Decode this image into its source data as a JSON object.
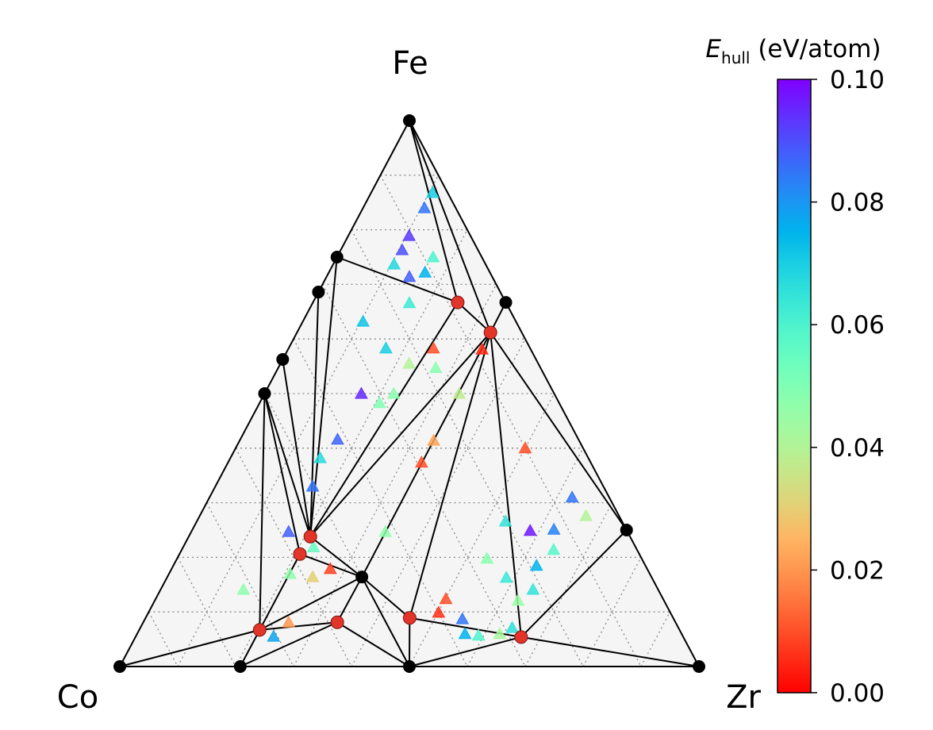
{
  "chart_data": {
    "type": "scatter",
    "subtype": "ternary-phase-diagram",
    "vertices": {
      "top": "Fe",
      "left": "Co",
      "right": "Zr"
    },
    "composition_axes": [
      "Fe",
      "Zr"
    ],
    "grid": true,
    "grid_step": 0.1,
    "colorbar": {
      "label_main": "E",
      "label_sub": "hull",
      "label_unit": " (eV/atom)",
      "range": [
        0.0,
        0.1
      ],
      "ticks": [
        "0.00",
        "0.02",
        "0.04",
        "0.06",
        "0.08",
        "0.10"
      ],
      "tick_values": [
        0,
        0.02,
        0.04,
        0.06,
        0.08,
        0.1
      ],
      "colormap": "rainbow_r",
      "position": "right"
    },
    "hull_nodes": [
      {
        "id": "Fe",
        "Fe": 1.0,
        "Zr": 0.0,
        "stable_type": "elemental"
      },
      {
        "id": "B",
        "Fe": 0.75,
        "Zr": 0.0,
        "stable_type": "binary"
      },
      {
        "id": "C",
        "Fe": 0.686,
        "Zr": 0.0,
        "stable_type": "binary"
      },
      {
        "id": "D",
        "Fe": 0.5625,
        "Zr": 0.0,
        "stable_type": "binary"
      },
      {
        "id": "E",
        "Fe": 0.5,
        "Zr": 0.0,
        "stable_type": "binary"
      },
      {
        "id": "F",
        "Fe": 0.667,
        "Zr": 0.333,
        "stable_type": "binary"
      },
      {
        "id": "G",
        "Fe": 0.25,
        "Zr": 0.75,
        "stable_type": "binary"
      },
      {
        "id": "Zr",
        "Fe": 0.0,
        "Zr": 1.0,
        "stable_type": "elemental"
      },
      {
        "id": "I",
        "Fe": 0.0,
        "Zr": 0.5,
        "stable_type": "binary"
      },
      {
        "id": "J",
        "Fe": 0.0,
        "Zr": 0.208,
        "stable_type": "binary"
      },
      {
        "id": "Co",
        "Fe": 0.0,
        "Zr": 0.0,
        "stable_type": "elemental"
      },
      {
        "id": "L",
        "Fe": 0.164,
        "Zr": 0.336,
        "stable_type": "binary"
      },
      {
        "id": "R1",
        "Fe": 0.667,
        "Zr": 0.25,
        "stable_type": "ternary"
      },
      {
        "id": "R2",
        "Fe": 0.612,
        "Zr": 0.334,
        "stable_type": "ternary"
      },
      {
        "id": "R3",
        "Fe": 0.238,
        "Zr": 0.21,
        "stable_type": "ternary"
      },
      {
        "id": "R4",
        "Fe": 0.206,
        "Zr": 0.208,
        "stable_type": "ternary"
      },
      {
        "id": "R5",
        "Fe": 0.067,
        "Zr": 0.208,
        "stable_type": "ternary"
      },
      {
        "id": "R6",
        "Fe": 0.081,
        "Zr": 0.335,
        "stable_type": "ternary"
      },
      {
        "id": "R7",
        "Fe": 0.089,
        "Zr": 0.456,
        "stable_type": "ternary"
      },
      {
        "id": "R8",
        "Fe": 0.054,
        "Zr": 0.666,
        "stable_type": "ternary"
      }
    ],
    "tie_lines": [
      [
        "Fe",
        "Co"
      ],
      [
        "Co",
        "Zr"
      ],
      [
        "Fe",
        "Zr"
      ],
      [
        "Fe",
        "R1"
      ],
      [
        "Fe",
        "R2"
      ],
      [
        "B",
        "R1"
      ],
      [
        "B",
        "R3"
      ],
      [
        "C",
        "R3"
      ],
      [
        "D",
        "R3"
      ],
      [
        "E",
        "R3"
      ],
      [
        "E",
        "R4"
      ],
      [
        "E",
        "R5"
      ],
      [
        "R1",
        "R2"
      ],
      [
        "R1",
        "R3"
      ],
      [
        "R2",
        "F"
      ],
      [
        "R2",
        "R3"
      ],
      [
        "R2",
        "L"
      ],
      [
        "R2",
        "R7"
      ],
      [
        "R2",
        "R8"
      ],
      [
        "R2",
        "G"
      ],
      [
        "R3",
        "L"
      ],
      [
        "R4",
        "L"
      ],
      [
        "R4",
        "R5"
      ],
      [
        "R5",
        "L"
      ],
      [
        "R5",
        "R6"
      ],
      [
        "R5",
        "J"
      ],
      [
        "R5",
        "Co"
      ],
      [
        "J",
        "R6"
      ],
      [
        "L",
        "R6"
      ],
      [
        "L",
        "R7"
      ],
      [
        "L",
        "I"
      ],
      [
        "R6",
        "I"
      ],
      [
        "R7",
        "I"
      ],
      [
        "R7",
        "R8"
      ],
      [
        "I",
        "R8"
      ],
      [
        "R8",
        "Zr"
      ],
      [
        "R8",
        "G"
      ]
    ],
    "unstable_points": [
      {
        "Fe": 0.868,
        "Zr": 0.106,
        "Ehull": 0.07
      },
      {
        "Fe": 0.84,
        "Zr": 0.106,
        "Ehull": 0.085
      },
      {
        "Fe": 0.789,
        "Zr": 0.105,
        "Ehull": 0.093
      },
      {
        "Fe": 0.763,
        "Zr": 0.106,
        "Ehull": 0.09
      },
      {
        "Fe": 0.75,
        "Zr": 0.166,
        "Ehull": 0.06
      },
      {
        "Fe": 0.737,
        "Zr": 0.105,
        "Ehull": 0.068
      },
      {
        "Fe": 0.722,
        "Zr": 0.166,
        "Ehull": 0.075
      },
      {
        "Fe": 0.714,
        "Zr": 0.143,
        "Ehull": 0.088
      },
      {
        "Fe": 0.666,
        "Zr": 0.167,
        "Ehull": 0.063
      },
      {
        "Fe": 0.632,
        "Zr": 0.104,
        "Ehull": 0.072
      },
      {
        "Fe": 0.583,
        "Zr": 0.168,
        "Ehull": 0.07
      },
      {
        "Fe": 0.583,
        "Zr": 0.25,
        "Ehull": 0.01
      },
      {
        "Fe": 0.555,
        "Zr": 0.222,
        "Ehull": 0.04
      },
      {
        "Fe": 0.547,
        "Zr": 0.272,
        "Ehull": 0.048
      },
      {
        "Fe": 0.5,
        "Zr": 0.167,
        "Ehull": 0.095
      },
      {
        "Fe": 0.5,
        "Zr": 0.223,
        "Ehull": 0.048
      },
      {
        "Fe": 0.483,
        "Zr": 0.207,
        "Ehull": 0.05
      },
      {
        "Fe": 0.5,
        "Zr": 0.336,
        "Ehull": 0.038
      },
      {
        "Fe": 0.416,
        "Zr": 0.168,
        "Ehull": 0.087
      },
      {
        "Fe": 0.382,
        "Zr": 0.155,
        "Ehull": 0.067
      },
      {
        "Fe": 0.33,
        "Zr": 0.168,
        "Ehull": 0.085
      },
      {
        "Fe": 0.414,
        "Zr": 0.335,
        "Ehull": 0.022
      },
      {
        "Fe": 0.374,
        "Zr": 0.334,
        "Ehull": 0.01
      },
      {
        "Fe": 0.581,
        "Zr": 0.335,
        "Ehull": 0.005
      },
      {
        "Fe": 0.4,
        "Zr": 0.5,
        "Ehull": 0.01
      },
      {
        "Fe": 0.247,
        "Zr": 0.168,
        "Ehull": 0.088
      },
      {
        "Fe": 0.219,
        "Zr": 0.225,
        "Ehull": 0.055
      },
      {
        "Fe": 0.247,
        "Zr": 0.335,
        "Ehull": 0.047
      },
      {
        "Fe": 0.179,
        "Zr": 0.274,
        "Ehull": 0.008
      },
      {
        "Fe": 0.164,
        "Zr": 0.251,
        "Ehull": 0.03
      },
      {
        "Fe": 0.17,
        "Zr": 0.209,
        "Ehull": 0.047
      },
      {
        "Fe": 0.141,
        "Zr": 0.143,
        "Ehull": 0.047
      },
      {
        "Fe": 0.081,
        "Zr": 0.251,
        "Ehull": 0.02
      },
      {
        "Fe": 0.055,
        "Zr": 0.238,
        "Ehull": 0.078
      },
      {
        "Fe": 0.266,
        "Zr": 0.533,
        "Ehull": 0.065
      },
      {
        "Fe": 0.249,
        "Zr": 0.584,
        "Ehull": 0.097
      },
      {
        "Fe": 0.251,
        "Zr": 0.624,
        "Ehull": 0.083
      },
      {
        "Fe": 0.276,
        "Zr": 0.667,
        "Ehull": 0.04
      },
      {
        "Fe": 0.214,
        "Zr": 0.642,
        "Ehull": 0.058
      },
      {
        "Fe": 0.198,
        "Zr": 0.535,
        "Ehull": 0.048
      },
      {
        "Fe": 0.185,
        "Zr": 0.627,
        "Ehull": 0.075
      },
      {
        "Fe": 0.163,
        "Zr": 0.586,
        "Ehull": 0.064
      },
      {
        "Fe": 0.141,
        "Zr": 0.643,
        "Ehull": 0.065
      },
      {
        "Fe": 0.121,
        "Zr": 0.627,
        "Ehull": 0.045
      },
      {
        "Fe": 0.124,
        "Zr": 0.501,
        "Ehull": 0.01
      },
      {
        "Fe": 0.099,
        "Zr": 0.501,
        "Ehull": 0.006
      },
      {
        "Fe": 0.087,
        "Zr": 0.548,
        "Ehull": 0.085
      },
      {
        "Fe": 0.06,
        "Zr": 0.566,
        "Ehull": 0.075
      },
      {
        "Fe": 0.057,
        "Zr": 0.591,
        "Ehull": 0.06
      },
      {
        "Fe": 0.06,
        "Zr": 0.626,
        "Ehull": 0.042
      },
      {
        "Fe": 0.071,
        "Zr": 0.642,
        "Ehull": 0.066
      },
      {
        "Fe": 0.31,
        "Zr": 0.626,
        "Ehull": 0.085
      }
    ]
  }
}
